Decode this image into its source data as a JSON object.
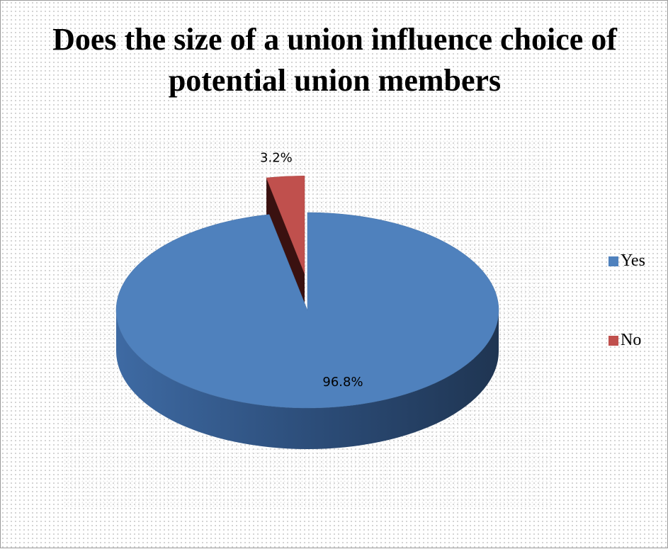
{
  "chart_data": {
    "type": "pie",
    "title": "Does the size of a union influence choice of potential union members",
    "categories": [
      "Yes",
      "No"
    ],
    "values": [
      96.8,
      3.2
    ],
    "data_labels": [
      "96.8%",
      "3.2%"
    ],
    "colors": [
      "#4f81bd",
      "#c0504d"
    ],
    "style": "3d-exploded",
    "legend_position": "right"
  },
  "legend": {
    "items": [
      {
        "label": "Yes",
        "color": "#4f81bd"
      },
      {
        "label": "No",
        "color": "#c0504d"
      }
    ]
  }
}
